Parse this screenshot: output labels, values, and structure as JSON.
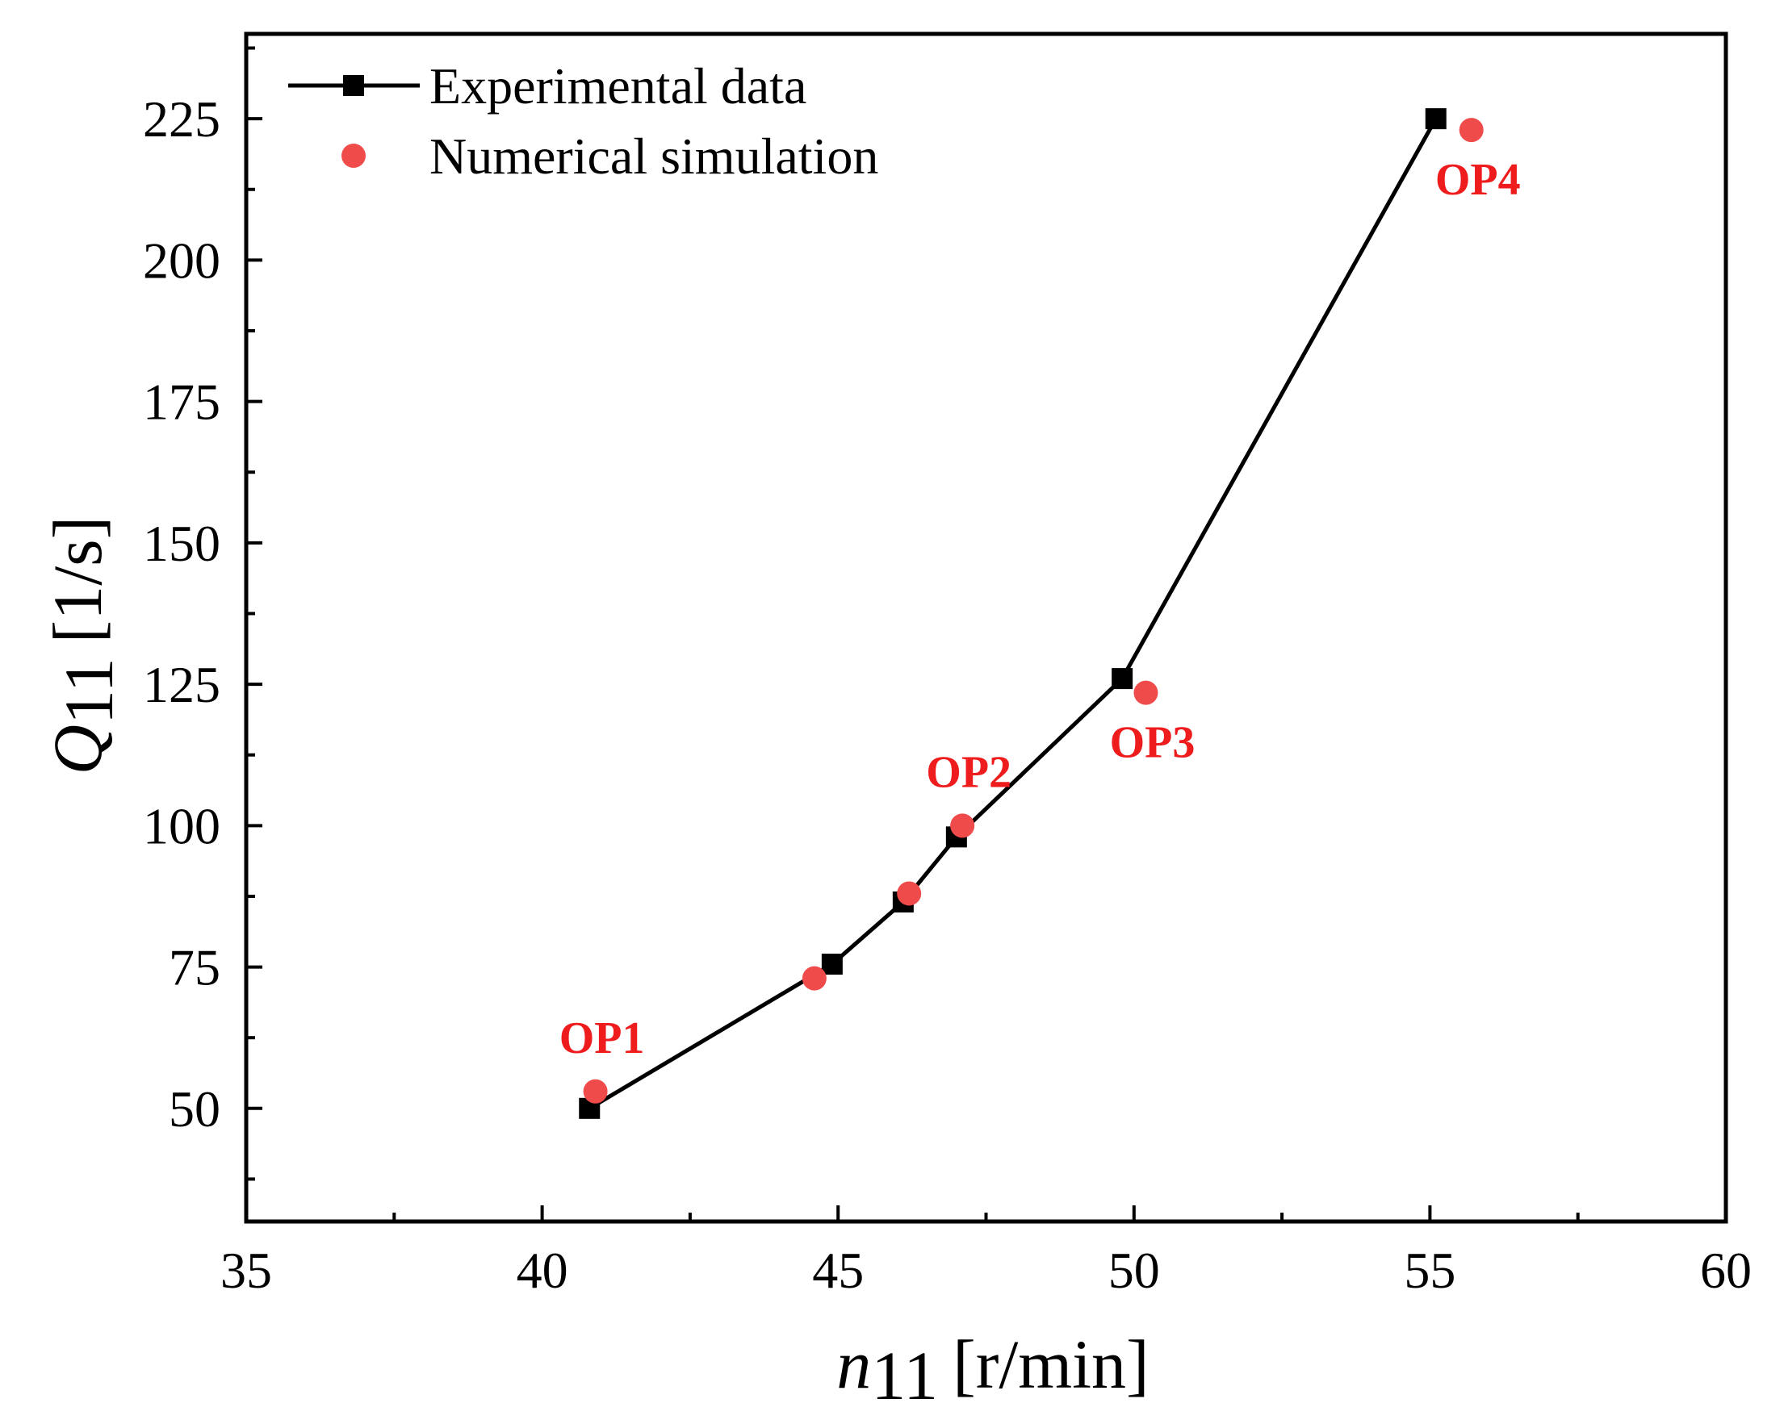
{
  "chart_data": {
    "type": "line",
    "title": "",
    "xlabel": {
      "symbol": "n",
      "subscript": "11",
      "unit": "[r/min]"
    },
    "ylabel": {
      "symbol": "Q",
      "subscript": "11",
      "unit": "[1/s]"
    },
    "xlim": [
      35,
      60
    ],
    "ylim": [
      30,
      240
    ],
    "xticks": [
      35,
      40,
      45,
      50,
      55,
      60
    ],
    "yticks": [
      50,
      75,
      100,
      125,
      150,
      175,
      200,
      225
    ],
    "legend_position": "top-left",
    "series": [
      {
        "name": "Experimental data",
        "kind": "line-square",
        "color": "#000000",
        "x": [
          40.8,
          44.9,
          46.1,
          47.0,
          49.8,
          55.1
        ],
        "y": [
          50.0,
          75.5,
          86.5,
          98.0,
          126.0,
          225.0
        ]
      },
      {
        "name": "Numerical simulation",
        "kind": "scatter-circle",
        "color": "#ef4b4b",
        "x": [
          40.9,
          44.6,
          46.2,
          47.1,
          50.2,
          55.7
        ],
        "y": [
          53.0,
          73.0,
          88.0,
          100.0,
          123.5,
          223.0
        ]
      }
    ],
    "annotations": [
      {
        "text": "OP1",
        "x": 40.9,
        "y": 53.0,
        "anchor": "above"
      },
      {
        "text": "OP2",
        "x": 47.1,
        "y": 100.0,
        "anchor": "above"
      },
      {
        "text": "OP3",
        "x": 50.2,
        "y": 123.5,
        "anchor": "below"
      },
      {
        "text": "OP4",
        "x": 55.7,
        "y": 223.0,
        "anchor": "below"
      }
    ],
    "annotation_color": "#ee1c1c"
  }
}
